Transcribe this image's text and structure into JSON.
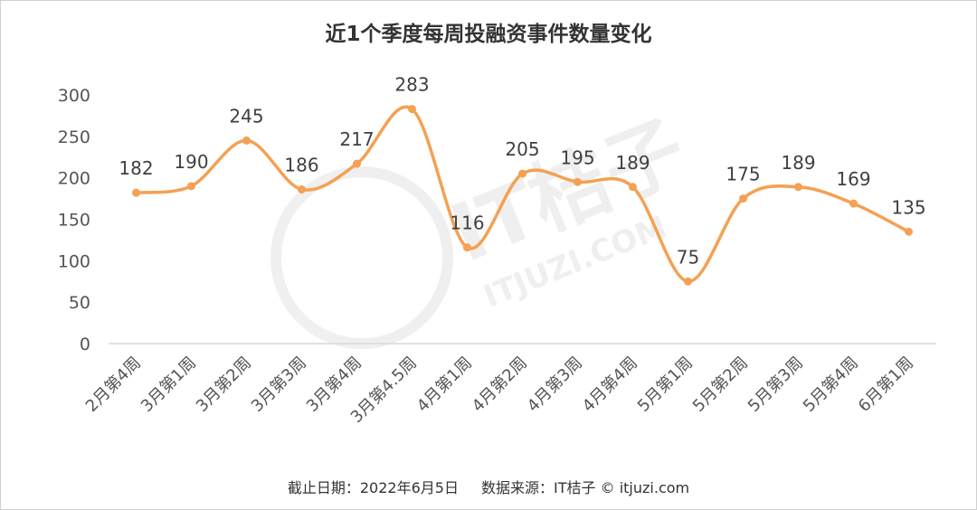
{
  "chart_data": {
    "type": "line",
    "title": "近1个季度每周投融资事件数量变化",
    "categories": [
      "2月第4周",
      "3月第1周",
      "3月第2周",
      "3月第3周",
      "3月第4周",
      "3月第4.5周",
      "4月第1周",
      "4月第2周",
      "4月第3周",
      "4月第4周",
      "5月第1周",
      "5月第2周",
      "5月第3周",
      "5月第4周",
      "6月第1周"
    ],
    "values": [
      182,
      190,
      245,
      186,
      217,
      283,
      116,
      205,
      195,
      189,
      75,
      175,
      189,
      169,
      135
    ],
    "ylim": [
      0,
      300
    ],
    "yticks": [
      0,
      50,
      100,
      150,
      200,
      250,
      300
    ],
    "line_color": "#F4A153",
    "grid": false,
    "smooth": true,
    "data_labels": true
  },
  "footer": {
    "cutoff": "截止日期：2022年6月5日",
    "source": "数据来源：IT桔子 © itjuzi.com"
  },
  "watermark": {
    "brand": "IT桔子",
    "url": "ITJUZI.COM"
  }
}
